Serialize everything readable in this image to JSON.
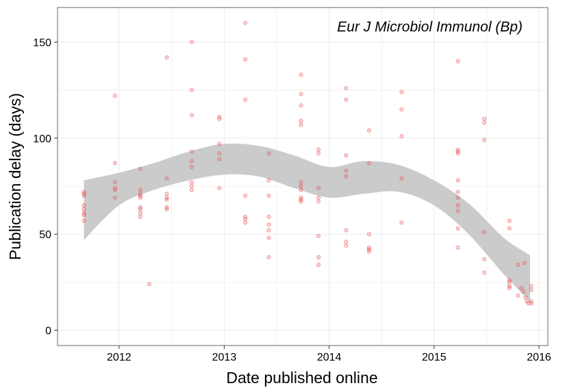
{
  "chart_data": {
    "type": "scatter",
    "title": "",
    "annotation": "Eur J Microbiol Immunol (Bp)",
    "xlabel": "Date published online",
    "ylabel": "Publication delay (days)",
    "xlim": [
      "2011-06-01",
      "2016-02-01"
    ],
    "ylim": [
      -8,
      168
    ],
    "x_ticks": [
      {
        "value": "2012-01-01",
        "label": "2012"
      },
      {
        "value": "2013-01-01",
        "label": "2013"
      },
      {
        "value": "2014-01-01",
        "label": "2014"
      },
      {
        "value": "2015-01-01",
        "label": "2015"
      },
      {
        "value": "2016-01-01",
        "label": "2016"
      }
    ],
    "y_ticks": [
      {
        "value": 0,
        "label": "0"
      },
      {
        "value": 50,
        "label": "50"
      },
      {
        "value": 100,
        "label": "100"
      },
      {
        "value": 150,
        "label": "150"
      }
    ],
    "grid": true,
    "colors": {
      "points": "#e8494a",
      "band": "#c8c8c8",
      "grid": "#ebebeb",
      "frame": "#7f7f7f"
    },
    "points": [
      {
        "x": "2011-09-01",
        "y": 72
      },
      {
        "x": "2011-09-01",
        "y": 71
      },
      {
        "x": "2011-09-01",
        "y": 70
      },
      {
        "x": "2011-09-01",
        "y": 65
      },
      {
        "x": "2011-09-01",
        "y": 63
      },
      {
        "x": "2011-09-01",
        "y": 61
      },
      {
        "x": "2011-09-01",
        "y": 60
      },
      {
        "x": "2011-09-01",
        "y": 57
      },
      {
        "x": "2011-12-18",
        "y": 122
      },
      {
        "x": "2011-12-18",
        "y": 87
      },
      {
        "x": "2011-12-18",
        "y": 77
      },
      {
        "x": "2011-12-18",
        "y": 74
      },
      {
        "x": "2011-12-18",
        "y": 73
      },
      {
        "x": "2011-12-18",
        "y": 69
      },
      {
        "x": "2012-03-15",
        "y": 84
      },
      {
        "x": "2012-03-15",
        "y": 73
      },
      {
        "x": "2012-03-15",
        "y": 71
      },
      {
        "x": "2012-03-15",
        "y": 70
      },
      {
        "x": "2012-03-15",
        "y": 69
      },
      {
        "x": "2012-03-15",
        "y": 64
      },
      {
        "x": "2012-03-15",
        "y": 63
      },
      {
        "x": "2012-03-15",
        "y": 61
      },
      {
        "x": "2012-03-15",
        "y": 59
      },
      {
        "x": "2012-04-15",
        "y": 24
      },
      {
        "x": "2012-06-15",
        "y": 142
      },
      {
        "x": "2012-06-15",
        "y": 79
      },
      {
        "x": "2012-06-15",
        "y": 71
      },
      {
        "x": "2012-06-15",
        "y": 69
      },
      {
        "x": "2012-06-15",
        "y": 68
      },
      {
        "x": "2012-06-15",
        "y": 64
      },
      {
        "x": "2012-06-15",
        "y": 63
      },
      {
        "x": "2012-09-10",
        "y": 150
      },
      {
        "x": "2012-09-10",
        "y": 125
      },
      {
        "x": "2012-09-10",
        "y": 112
      },
      {
        "x": "2012-09-10",
        "y": 93
      },
      {
        "x": "2012-09-10",
        "y": 88
      },
      {
        "x": "2012-09-10",
        "y": 85
      },
      {
        "x": "2012-09-10",
        "y": 77
      },
      {
        "x": "2012-09-10",
        "y": 75
      },
      {
        "x": "2012-09-10",
        "y": 73
      },
      {
        "x": "2012-12-15",
        "y": 111
      },
      {
        "x": "2012-12-15",
        "y": 110
      },
      {
        "x": "2012-12-15",
        "y": 97
      },
      {
        "x": "2012-12-15",
        "y": 92
      },
      {
        "x": "2012-12-15",
        "y": 89
      },
      {
        "x": "2012-12-15",
        "y": 74
      },
      {
        "x": "2013-03-15",
        "y": 160
      },
      {
        "x": "2013-03-15",
        "y": 141
      },
      {
        "x": "2013-03-15",
        "y": 120
      },
      {
        "x": "2013-03-15",
        "y": 70
      },
      {
        "x": "2013-03-15",
        "y": 59
      },
      {
        "x": "2013-03-15",
        "y": 58
      },
      {
        "x": "2013-03-15",
        "y": 56
      },
      {
        "x": "2013-06-05",
        "y": 92
      },
      {
        "x": "2013-06-05",
        "y": 78
      },
      {
        "x": "2013-06-05",
        "y": 70
      },
      {
        "x": "2013-06-05",
        "y": 59
      },
      {
        "x": "2013-06-05",
        "y": 55
      },
      {
        "x": "2013-06-05",
        "y": 52
      },
      {
        "x": "2013-06-05",
        "y": 48
      },
      {
        "x": "2013-06-05",
        "y": 38
      },
      {
        "x": "2013-09-25",
        "y": 133
      },
      {
        "x": "2013-09-25",
        "y": 123
      },
      {
        "x": "2013-09-25",
        "y": 117
      },
      {
        "x": "2013-09-25",
        "y": 109
      },
      {
        "x": "2013-09-25",
        "y": 107
      },
      {
        "x": "2013-09-25",
        "y": 77
      },
      {
        "x": "2013-09-25",
        "y": 75
      },
      {
        "x": "2013-09-25",
        "y": 73
      },
      {
        "x": "2013-09-25",
        "y": 69
      },
      {
        "x": "2013-09-25",
        "y": 68
      },
      {
        "x": "2013-09-25",
        "y": 67
      },
      {
        "x": "2013-11-25",
        "y": 94
      },
      {
        "x": "2013-11-25",
        "y": 92
      },
      {
        "x": "2013-11-25",
        "y": 74
      },
      {
        "x": "2013-11-25",
        "y": 69
      },
      {
        "x": "2013-11-25",
        "y": 67
      },
      {
        "x": "2013-11-25",
        "y": 49
      },
      {
        "x": "2013-11-25",
        "y": 38
      },
      {
        "x": "2013-11-25",
        "y": 34
      },
      {
        "x": "2014-03-01",
        "y": 126
      },
      {
        "x": "2014-03-01",
        "y": 120
      },
      {
        "x": "2014-03-01",
        "y": 91
      },
      {
        "x": "2014-03-01",
        "y": 83
      },
      {
        "x": "2014-03-01",
        "y": 80
      },
      {
        "x": "2014-03-01",
        "y": 52
      },
      {
        "x": "2014-03-01",
        "y": 46
      },
      {
        "x": "2014-03-01",
        "y": 44
      },
      {
        "x": "2014-05-20",
        "y": 104
      },
      {
        "x": "2014-05-20",
        "y": 87
      },
      {
        "x": "2014-05-20",
        "y": 50
      },
      {
        "x": "2014-05-20",
        "y": 43
      },
      {
        "x": "2014-05-20",
        "y": 42
      },
      {
        "x": "2014-05-20",
        "y": 41
      },
      {
        "x": "2014-09-10",
        "y": 124
      },
      {
        "x": "2014-09-10",
        "y": 115
      },
      {
        "x": "2014-09-10",
        "y": 101
      },
      {
        "x": "2014-09-10",
        "y": 79
      },
      {
        "x": "2014-09-10",
        "y": 56
      },
      {
        "x": "2015-03-25",
        "y": 140
      },
      {
        "x": "2015-03-25",
        "y": 94
      },
      {
        "x": "2015-03-25",
        "y": 93
      },
      {
        "x": "2015-03-25",
        "y": 92
      },
      {
        "x": "2015-03-25",
        "y": 78
      },
      {
        "x": "2015-03-25",
        "y": 72
      },
      {
        "x": "2015-03-25",
        "y": 69
      },
      {
        "x": "2015-03-25",
        "y": 65
      },
      {
        "x": "2015-03-25",
        "y": 62
      },
      {
        "x": "2015-03-25",
        "y": 53
      },
      {
        "x": "2015-03-25",
        "y": 43
      },
      {
        "x": "2015-06-25",
        "y": 110
      },
      {
        "x": "2015-06-25",
        "y": 108
      },
      {
        "x": "2015-06-25",
        "y": 99
      },
      {
        "x": "2015-06-25",
        "y": 51
      },
      {
        "x": "2015-06-25",
        "y": 37
      },
      {
        "x": "2015-06-25",
        "y": 30
      },
      {
        "x": "2015-09-20",
        "y": 57
      },
      {
        "x": "2015-09-20",
        "y": 53
      },
      {
        "x": "2015-09-20",
        "y": 26
      },
      {
        "x": "2015-09-20",
        "y": 25
      },
      {
        "x": "2015-09-20",
        "y": 23
      },
      {
        "x": "2015-09-20",
        "y": 22
      },
      {
        "x": "2015-10-20",
        "y": 34
      },
      {
        "x": "2015-10-20",
        "y": 18
      },
      {
        "x": "2015-11-01",
        "y": 22
      },
      {
        "x": "2015-11-08",
        "y": 20
      },
      {
        "x": "2015-11-12",
        "y": 35
      },
      {
        "x": "2015-11-15",
        "y": 17
      },
      {
        "x": "2015-11-20",
        "y": 15
      },
      {
        "x": "2015-11-25",
        "y": 14
      },
      {
        "x": "2015-12-05",
        "y": 23
      },
      {
        "x": "2015-12-05",
        "y": 21
      },
      {
        "x": "2015-12-05",
        "y": 15
      },
      {
        "x": "2015-12-05",
        "y": 14
      }
    ],
    "smooth_band": [
      {
        "x": "2011-09-01",
        "lower": 47,
        "upper": 78
      },
      {
        "x": "2012-01-01",
        "lower": 65,
        "upper": 82
      },
      {
        "x": "2012-05-01",
        "lower": 73,
        "upper": 87
      },
      {
        "x": "2012-09-01",
        "lower": 78,
        "upper": 93
      },
      {
        "x": "2013-01-01",
        "lower": 81,
        "upper": 97
      },
      {
        "x": "2013-05-01",
        "lower": 80,
        "upper": 96
      },
      {
        "x": "2013-09-01",
        "lower": 74,
        "upper": 91
      },
      {
        "x": "2014-01-01",
        "lower": 69,
        "upper": 85
      },
      {
        "x": "2014-05-01",
        "lower": 71,
        "upper": 88
      },
      {
        "x": "2014-09-01",
        "lower": 72,
        "upper": 86
      },
      {
        "x": "2015-01-01",
        "lower": 65,
        "upper": 78
      },
      {
        "x": "2015-05-01",
        "lower": 50,
        "upper": 66
      },
      {
        "x": "2015-09-01",
        "lower": 29,
        "upper": 48
      },
      {
        "x": "2015-12-01",
        "lower": 15,
        "upper": 39
      }
    ]
  }
}
